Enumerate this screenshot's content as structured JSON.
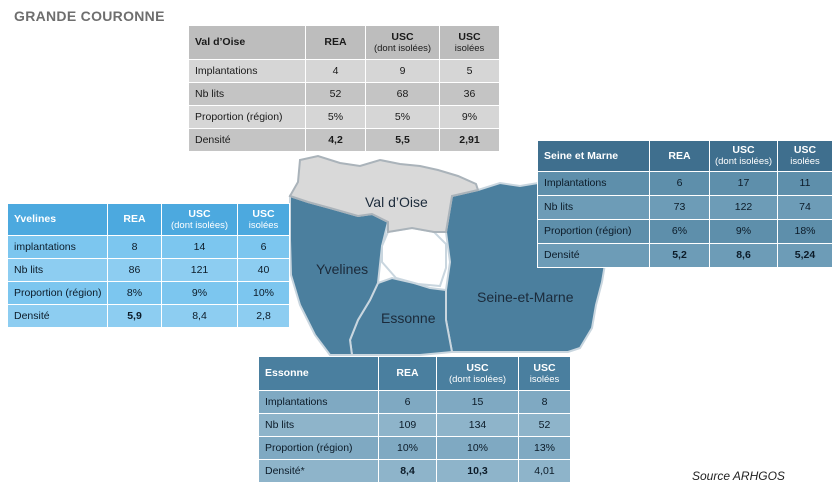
{
  "title": "GRANDE COURONNE",
  "source": "Source ARHGOS",
  "map": {
    "labels": {
      "val_doise": "Val d’Oise",
      "yvelines": "Yvelines",
      "essonne": "Essonne",
      "seine_et_marne": "Seine-et-Marne"
    },
    "colors": {
      "val_doise": "#d9d9d9",
      "yvelines": "#4b7f9e",
      "essonne": "#4b7f9e",
      "seine_et_marne": "#4b7f9e",
      "outline": "#c9d6df"
    }
  },
  "tables": {
    "val_doise": {
      "name": "Val d’Oise",
      "headers": {
        "rea": "REA",
        "usc_dont": "USC",
        "usc_dont_sub": "(dont isolées)",
        "usc_iso": "USC",
        "usc_iso_sub": "isolées"
      },
      "rows": [
        {
          "label": "Implantations",
          "rea": "4",
          "usc": "9",
          "iso": "5"
        },
        {
          "label": "Nb lits",
          "rea": "52",
          "usc": "68",
          "iso": "36"
        },
        {
          "label": "Proportion (région)",
          "rea": "5%",
          "usc": "5%",
          "iso": "9%"
        },
        {
          "label": "Densité",
          "rea": "4,2",
          "usc": "5,5",
          "iso": "2,91"
        }
      ]
    },
    "seine_et_marne": {
      "name": "Seine et Marne",
      "headers": {
        "rea": "REA",
        "usc_dont": "USC",
        "usc_dont_sub": "(dont isolées)",
        "usc_iso": "USC",
        "usc_iso_sub": "isolées"
      },
      "rows": [
        {
          "label": "Implantations",
          "rea": "6",
          "usc": "17",
          "iso": "11"
        },
        {
          "label": "Nb lits",
          "rea": "73",
          "usc": "122",
          "iso": "74"
        },
        {
          "label": "Proportion (région)",
          "rea": "6%",
          "usc": "9%",
          "iso": "18%"
        },
        {
          "label": "Densité",
          "rea": "5,2",
          "usc": "8,6",
          "iso": "5,24"
        }
      ]
    },
    "yvelines": {
      "name": "Yvelines",
      "headers": {
        "rea": "REA",
        "usc_dont": "USC",
        "usc_dont_sub": "(dont isolées)",
        "usc_iso": "USC",
        "usc_iso_sub": "isolées"
      },
      "rows": [
        {
          "label": "implantations",
          "rea": "8",
          "usc": "14",
          "iso": "6"
        },
        {
          "label": "Nb lits",
          "rea": "86",
          "usc": "121",
          "iso": "40"
        },
        {
          "label": "Proportion (région)",
          "rea": "8%",
          "usc": "9%",
          "iso": "10%"
        },
        {
          "label": "Densité",
          "rea": "5,9",
          "usc": "8,4",
          "iso": "2,8"
        }
      ]
    },
    "essonne": {
      "name": "Essonne",
      "headers": {
        "rea": "REA",
        "usc_dont": "USC",
        "usc_dont_sub": "(dont isolées)",
        "usc_iso": "USC",
        "usc_iso_sub": "isolées"
      },
      "rows": [
        {
          "label": "Implantations",
          "rea": "6",
          "usc": "15",
          "iso": "8"
        },
        {
          "label": "Nb lits",
          "rea": "109",
          "usc": "134",
          "iso": "52"
        },
        {
          "label": "Proportion (région)",
          "rea": "10%",
          "usc": "10%",
          "iso": "13%"
        },
        {
          "label": "Densité*",
          "rea": "8,4",
          "usc": "10,3",
          "iso": "4,01"
        }
      ]
    }
  }
}
